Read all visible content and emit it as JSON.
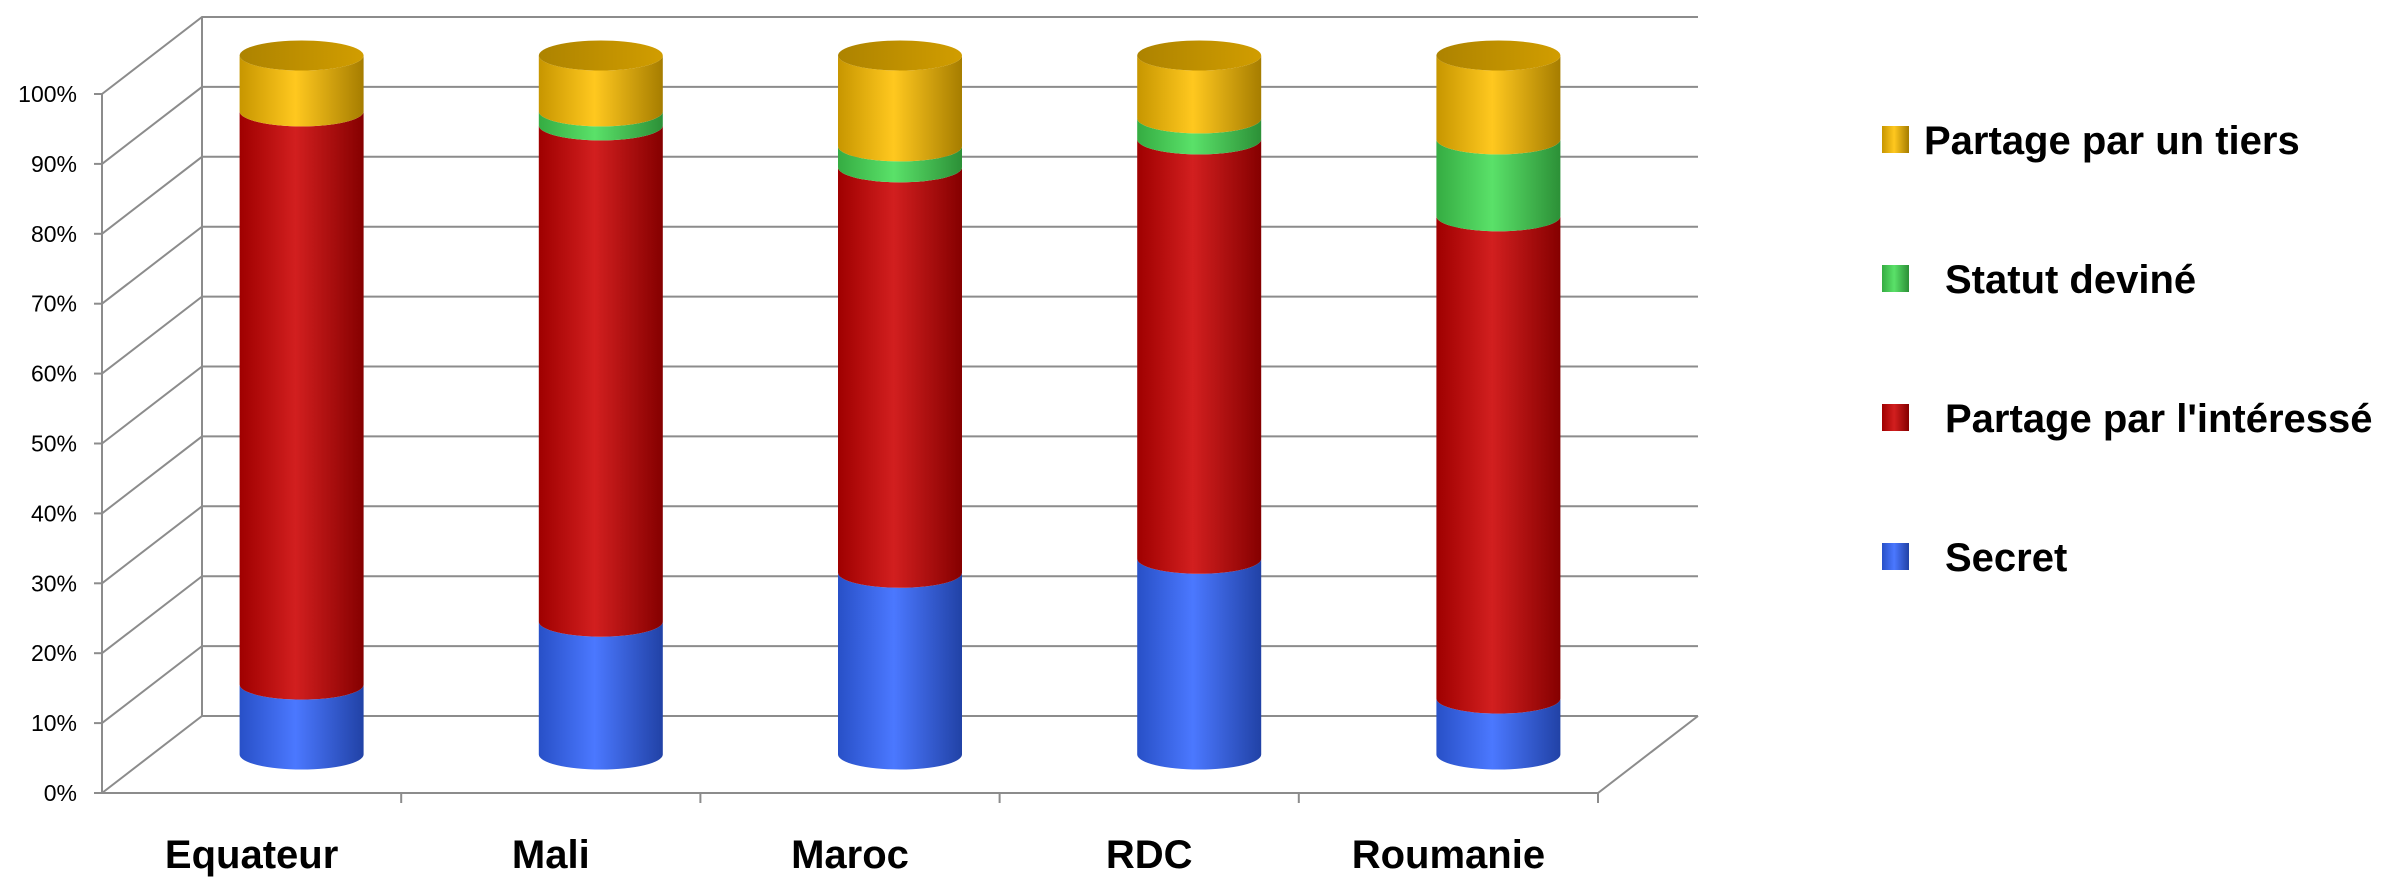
{
  "chart_data": {
    "type": "bar",
    "stacked": true,
    "percent_stacked": true,
    "three_d": true,
    "bar_shape": "cylinder",
    "title": "",
    "xlabel": "",
    "ylabel": "",
    "ylim": [
      0,
      100
    ],
    "yticks": [
      "0%",
      "10%",
      "20%",
      "30%",
      "40%",
      "50%",
      "60%",
      "70%",
      "80%",
      "90%",
      "100%"
    ],
    "grid": true,
    "legend_position": "right",
    "categories": [
      "Equateur",
      "Mali",
      "Maroc",
      "RDC",
      "Roumanie"
    ],
    "series": [
      {
        "name": "Secret",
        "color": "#3366ff",
        "values": [
          10,
          19,
          26,
          28,
          8
        ]
      },
      {
        "name": "Partage par l'intéressé",
        "color": "#cc0000",
        "values": [
          82,
          71,
          58,
          60,
          69
        ]
      },
      {
        "name": "Statut deviné",
        "color": "#44dd55",
        "values": [
          0,
          2,
          3,
          3,
          11
        ]
      },
      {
        "name": "Partage par un tiers",
        "color": "#ffc000",
        "values": [
          8,
          8,
          13,
          9,
          12
        ]
      }
    ]
  }
}
